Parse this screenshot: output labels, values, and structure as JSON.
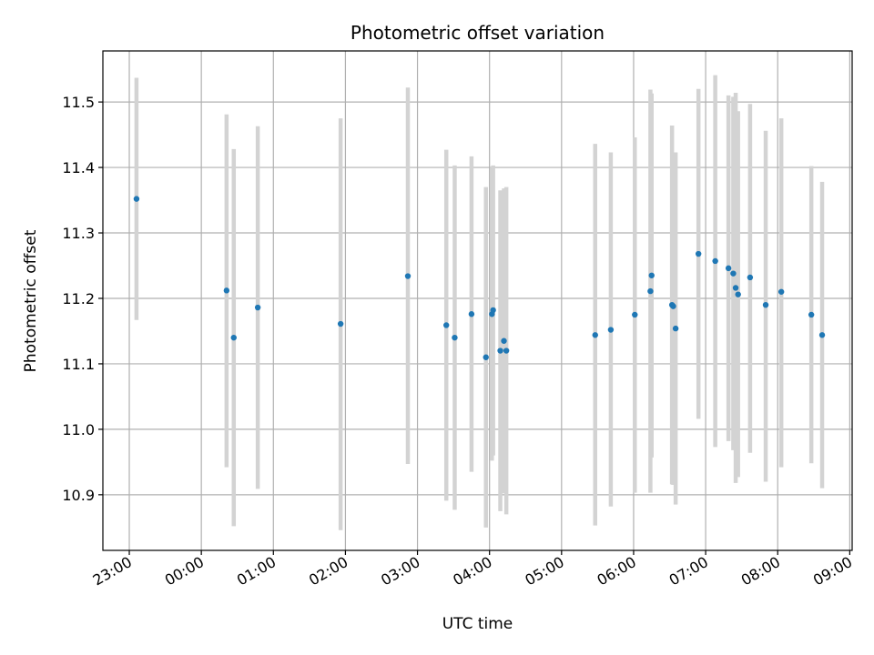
{
  "chart_data": {
    "type": "scatter",
    "title": "Photometric offset variation",
    "xlabel": "UTC time",
    "ylabel": "Photometric offset",
    "x_ticks": [
      "23:00",
      "00:00",
      "01:00",
      "02:00",
      "03:00",
      "04:00",
      "05:00",
      "06:00",
      "07:00",
      "08:00",
      "09:00"
    ],
    "y_ticks": [
      "10.9",
      "11.0",
      "11.1",
      "11.2",
      "11.3",
      "11.4",
      "11.5"
    ],
    "xlim": [
      "22:38",
      "09:02"
    ],
    "ylim": [
      10.815,
      11.578
    ],
    "grid": true,
    "colors": {
      "point": "#1f77b4",
      "errorbar": "#d3d3d3",
      "grid": "#b0b0b0"
    },
    "points": [
      {
        "x": "23:06",
        "y": 11.352,
        "ymin": 11.167,
        "ymax": 11.537
      },
      {
        "x": "00:21",
        "y": 11.212,
        "ymin": 10.942,
        "ymax": 11.481
      },
      {
        "x": "00:27",
        "y": 11.14,
        "ymin": 10.852,
        "ymax": 11.428
      },
      {
        "x": "00:47",
        "y": 11.186,
        "ymin": 10.909,
        "ymax": 11.463
      },
      {
        "x": "01:56",
        "y": 11.161,
        "ymin": 10.846,
        "ymax": 11.475
      },
      {
        "x": "02:52",
        "y": 11.234,
        "ymin": 10.947,
        "ymax": 11.522
      },
      {
        "x": "03:24",
        "y": 11.159,
        "ymin": 10.891,
        "ymax": 11.427
      },
      {
        "x": "03:31",
        "y": 11.14,
        "ymin": 10.877,
        "ymax": 11.403
      },
      {
        "x": "03:45",
        "y": 11.176,
        "ymin": 10.935,
        "ymax": 11.417
      },
      {
        "x": "03:57",
        "y": 11.11,
        "ymin": 10.85,
        "ymax": 11.37
      },
      {
        "x": "04:02",
        "y": 11.176,
        "ymin": 10.952,
        "ymax": 11.4
      },
      {
        "x": "04:03",
        "y": 11.182,
        "ymin": 10.96,
        "ymax": 11.403
      },
      {
        "x": "04:09",
        "y": 11.12,
        "ymin": 10.875,
        "ymax": 11.365
      },
      {
        "x": "04:12",
        "y": 11.135,
        "ymin": 10.902,
        "ymax": 11.368
      },
      {
        "x": "04:14",
        "y": 11.12,
        "ymin": 10.87,
        "ymax": 11.37
      },
      {
        "x": "05:28",
        "y": 11.144,
        "ymin": 10.853,
        "ymax": 11.436
      },
      {
        "x": "05:41",
        "y": 11.152,
        "ymin": 10.882,
        "ymax": 11.423
      },
      {
        "x": "06:01",
        "y": 11.175,
        "ymin": 10.903,
        "ymax": 11.446
      },
      {
        "x": "06:14",
        "y": 11.211,
        "ymin": 10.903,
        "ymax": 11.519
      },
      {
        "x": "06:15",
        "y": 11.235,
        "ymin": 10.957,
        "ymax": 11.513
      },
      {
        "x": "06:32",
        "y": 11.19,
        "ymin": 10.916,
        "ymax": 11.464
      },
      {
        "x": "06:33",
        "y": 11.188,
        "ymin": 10.915,
        "ymax": 11.42
      },
      {
        "x": "06:35",
        "y": 11.154,
        "ymin": 10.885,
        "ymax": 11.423
      },
      {
        "x": "06:54",
        "y": 11.268,
        "ymin": 11.016,
        "ymax": 11.52
      },
      {
        "x": "07:08",
        "y": 11.257,
        "ymin": 10.973,
        "ymax": 11.541
      },
      {
        "x": "07:19",
        "y": 11.246,
        "ymin": 10.982,
        "ymax": 11.51
      },
      {
        "x": "07:23",
        "y": 11.238,
        "ymin": 10.968,
        "ymax": 11.508
      },
      {
        "x": "07:25",
        "y": 11.216,
        "ymin": 10.918,
        "ymax": 11.514
      },
      {
        "x": "07:27",
        "y": 11.206,
        "ymin": 10.927,
        "ymax": 11.486
      },
      {
        "x": "07:37",
        "y": 11.232,
        "ymin": 10.964,
        "ymax": 11.497
      },
      {
        "x": "07:50",
        "y": 11.19,
        "ymin": 10.92,
        "ymax": 11.456
      },
      {
        "x": "08:03",
        "y": 11.21,
        "ymin": 10.942,
        "ymax": 11.475
      },
      {
        "x": "08:28",
        "y": 11.175,
        "ymin": 10.948,
        "ymax": 11.402
      },
      {
        "x": "08:37",
        "y": 11.144,
        "ymin": 10.91,
        "ymax": 11.378
      }
    ]
  }
}
